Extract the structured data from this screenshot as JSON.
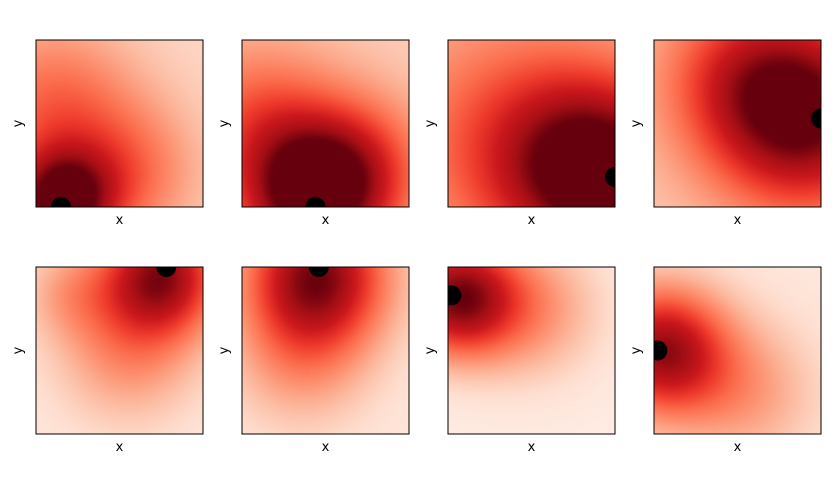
{
  "chart_data": [
    {
      "type": "heatmap",
      "xlabel": "x",
      "ylabel": "y",
      "colormap": "Reds",
      "grid": false,
      "marker": {
        "x": 0.15,
        "y": 0.0
      },
      "peaks": [
        {
          "x": 0.15,
          "y": 0.02,
          "s": 0.22,
          "w": 0.85
        },
        {
          "x": 0.1,
          "y": 0.6,
          "s": 0.35,
          "w": 0.35
        },
        {
          "x": 0.55,
          "y": 0.2,
          "s": 0.3,
          "w": 0.3
        }
      ],
      "base": 0.15
    },
    {
      "type": "heatmap",
      "xlabel": "x",
      "ylabel": "y",
      "colormap": "Reds",
      "grid": false,
      "marker": {
        "x": 0.44,
        "y": 0.0
      },
      "peaks": [
        {
          "x": 0.42,
          "y": 0.05,
          "s": 0.3,
          "w": 0.8
        },
        {
          "x": 0.1,
          "y": 0.5,
          "s": 0.35,
          "w": 0.35
        },
        {
          "x": 0.7,
          "y": 0.25,
          "s": 0.3,
          "w": 0.35
        }
      ],
      "base": 0.18
    },
    {
      "type": "heatmap",
      "xlabel": "x",
      "ylabel": "y",
      "colormap": "Reds",
      "grid": false,
      "marker": {
        "x": 1.0,
        "y": 0.18
      },
      "peaks": [
        {
          "x": 0.92,
          "y": 0.2,
          "s": 0.38,
          "w": 0.8
        },
        {
          "x": 0.4,
          "y": 0.4,
          "s": 0.5,
          "w": 0.35
        }
      ],
      "base": 0.22
    },
    {
      "type": "heatmap",
      "xlabel": "x",
      "ylabel": "y",
      "colormap": "Reds",
      "grid": false,
      "marker": {
        "x": 1.0,
        "y": 0.53
      },
      "peaks": [
        {
          "x": 0.9,
          "y": 0.55,
          "s": 0.4,
          "w": 0.8
        },
        {
          "x": 0.5,
          "y": 0.8,
          "s": 0.35,
          "w": 0.3
        }
      ],
      "base": 0.2
    },
    {
      "type": "heatmap",
      "xlabel": "x",
      "ylabel": "y",
      "colormap": "Reds",
      "grid": false,
      "marker": {
        "x": 0.78,
        "y": 1.0
      },
      "peaks": [
        {
          "x": 0.75,
          "y": 0.95,
          "s": 0.25,
          "w": 0.8
        },
        {
          "x": 0.55,
          "y": 0.5,
          "s": 0.3,
          "w": 0.3
        },
        {
          "x": 0.2,
          "y": 0.85,
          "s": 0.2,
          "w": 0.2
        }
      ],
      "base": 0.08
    },
    {
      "type": "heatmap",
      "xlabel": "x",
      "ylabel": "y",
      "colormap": "Reds",
      "grid": false,
      "marker": {
        "x": 0.46,
        "y": 1.0
      },
      "peaks": [
        {
          "x": 0.45,
          "y": 0.95,
          "s": 0.3,
          "w": 0.85
        },
        {
          "x": 0.35,
          "y": 0.45,
          "s": 0.3,
          "w": 0.25
        }
      ],
      "base": 0.08
    },
    {
      "type": "heatmap",
      "xlabel": "x",
      "ylabel": "y",
      "colormap": "Reds",
      "grid": false,
      "marker": {
        "x": 0.02,
        "y": 0.83
      },
      "peaks": [
        {
          "x": 0.05,
          "y": 0.82,
          "s": 0.25,
          "w": 0.85
        },
        {
          "x": 0.5,
          "y": 0.75,
          "s": 0.3,
          "w": 0.3
        }
      ],
      "base": 0.05
    },
    {
      "type": "heatmap",
      "xlabel": "x",
      "ylabel": "y",
      "colormap": "Reds",
      "grid": false,
      "marker": {
        "x": 0.02,
        "y": 0.5
      },
      "peaks": [
        {
          "x": 0.05,
          "y": 0.5,
          "s": 0.27,
          "w": 0.8
        },
        {
          "x": 0.55,
          "y": 0.25,
          "s": 0.3,
          "w": 0.25
        }
      ],
      "base": 0.08
    }
  ]
}
